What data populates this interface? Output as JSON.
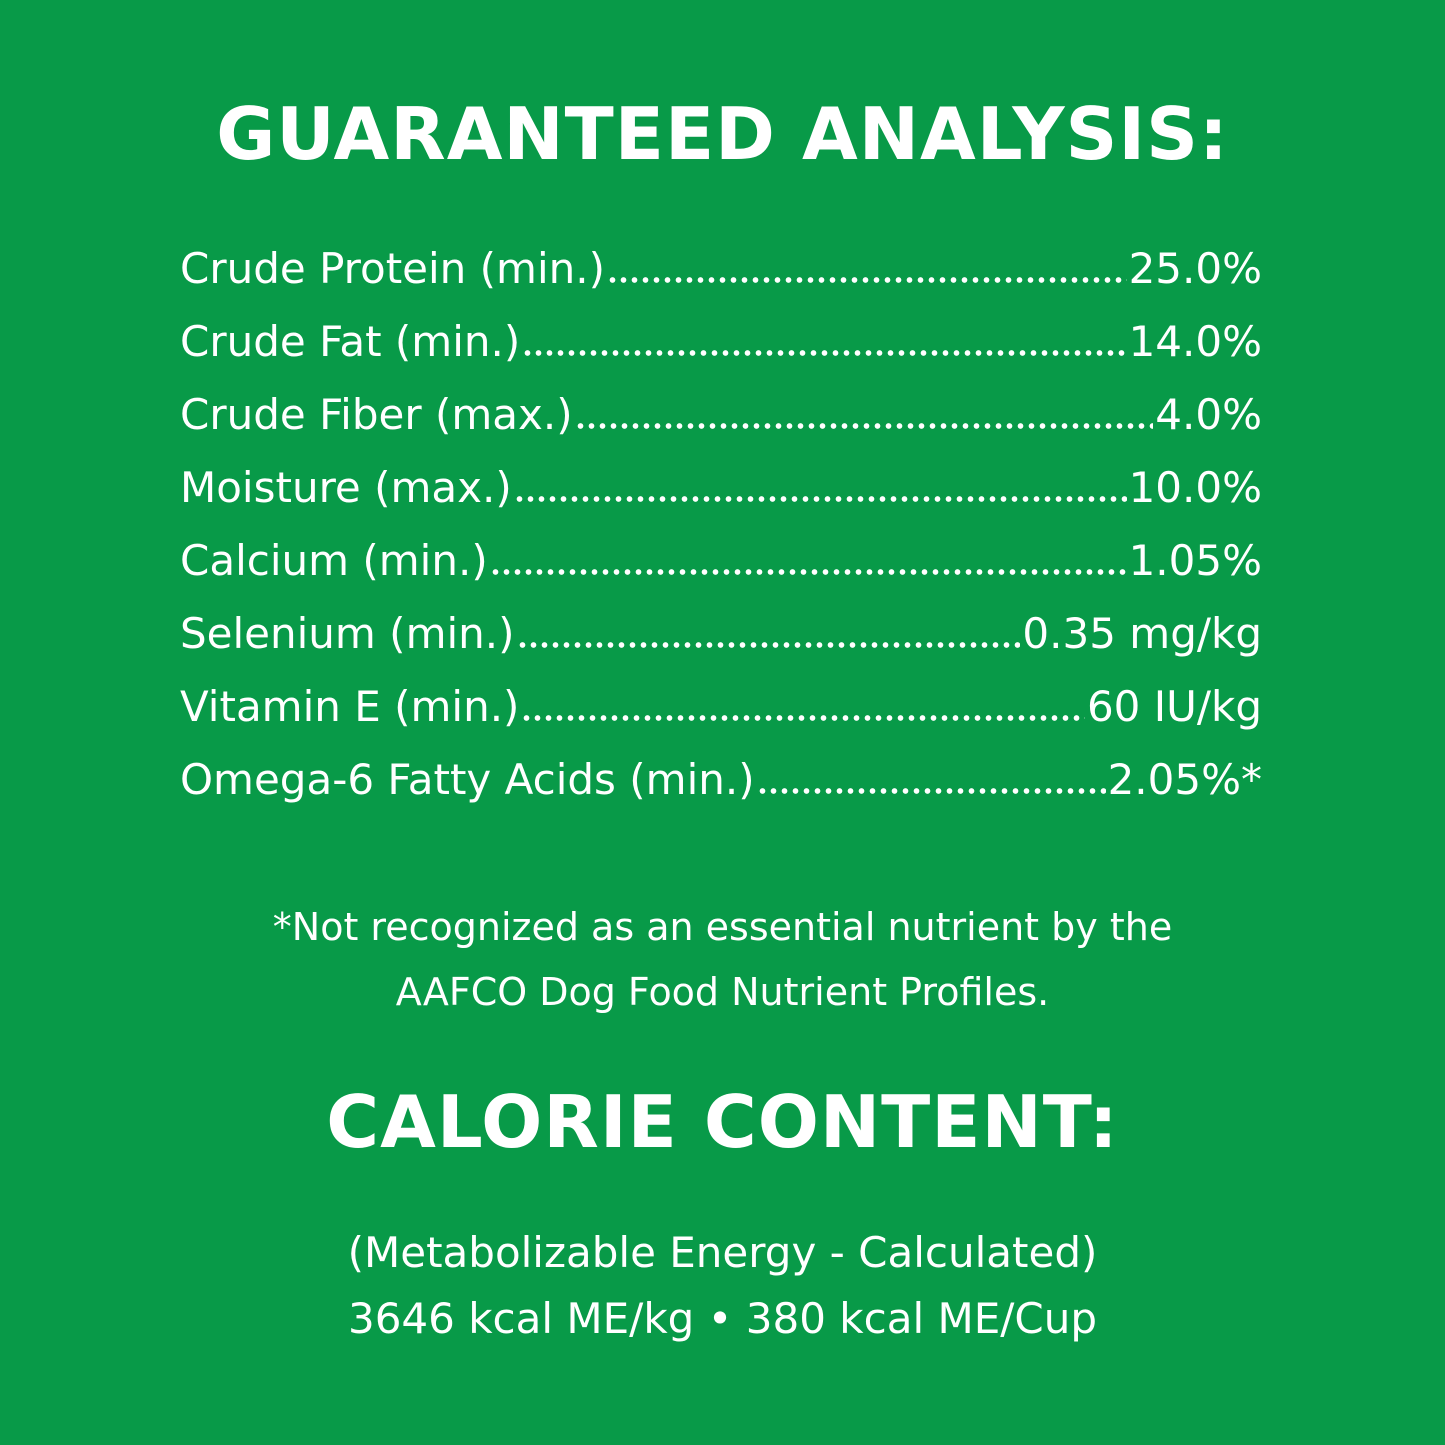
{
  "background_color": "#089a48",
  "text_color": "#ffffff",
  "guaranteed_analysis": {
    "title": "GUARANTEED ANALYSIS:",
    "rows": [
      {
        "label": "Crude Protein (min.)",
        "value": "25.0%"
      },
      {
        "label": "Crude Fat (min.)",
        "value": "14.0%"
      },
      {
        "label": "Crude Fiber (max.)",
        "value": "4.0%"
      },
      {
        "label": "Moisture (max.)",
        "value": "10.0%"
      },
      {
        "label": "Calcium (min.)",
        "value": "1.05%"
      },
      {
        "label": "Selenium (min.)",
        "value": "0.35 mg/kg"
      },
      {
        "label": "Vitamin E (min.)",
        "value": "60 IU/kg"
      },
      {
        "label": "Omega-6 Fatty Acids (min.)",
        "value": "2.05%*"
      }
    ],
    "footnote_line1": "*Not recognized as an essential nutrient by the",
    "footnote_line2": "AAFCO Dog Food Nutrient Profiles."
  },
  "calorie_content": {
    "title": "CALORIE CONTENT:",
    "line1": "(Metabolizable Energy - Calculated)",
    "line2": "3646 kcal ME/kg • 380 kcal ME/Cup"
  }
}
